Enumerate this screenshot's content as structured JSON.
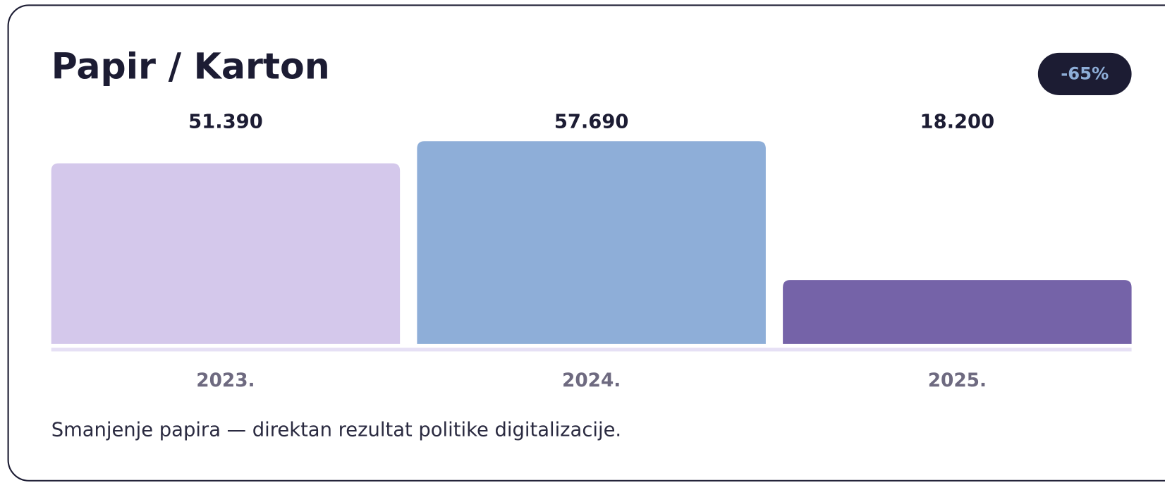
{
  "chart_data": {
    "type": "bar",
    "title": "Papir / Karton",
    "badge": "-65%",
    "categories": [
      "2023.",
      "2024.",
      "2025."
    ],
    "values": [
      51390,
      57690,
      18200
    ],
    "value_labels": [
      "51.390",
      "57.690",
      "18.200"
    ],
    "colors": [
      "#d4c8eb",
      "#8eaed8",
      "#7563a8"
    ],
    "note": "Smanjenje papira — direktan rezultat politike digitalizacije."
  }
}
